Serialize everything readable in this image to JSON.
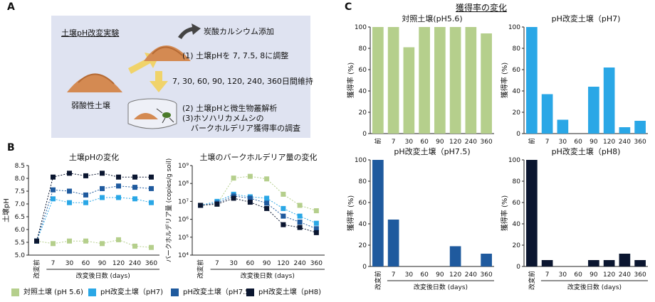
{
  "panel_labels": {
    "a": "A",
    "b": "B",
    "c": "C"
  },
  "panel_a": {
    "title": "土壌pH改変実験",
    "soil_label": "弱酸性土壌",
    "calcium_label": "炭酸カルシウム添加",
    "step1": "(1) 土壌pHを 7, 7.5, 8に調整",
    "days_text": "7, 30, 60, 90, 120, 240, 360日間維持",
    "step2": "(2) 土壌pHと微生物叢解析",
    "step3a": "(3)ホソハリカメムシの",
    "step3b": "バークホルデリア獲得率の調査"
  },
  "legend": [
    {
      "label": "対照土壌 (pH 5.6)",
      "color": "#b5cf8c"
    },
    {
      "label": "pH改変土壌（pH7)",
      "color": "#2aa7e6"
    },
    {
      "label": "pH改変土壌（pH7.5)",
      "color": "#1f5a9e"
    },
    {
      "label": "pH改変土壌（pH8)",
      "color": "#0b1630"
    }
  ],
  "panel_c_title": "獲得率の変化",
  "chart_data": [
    {
      "type": "line",
      "title": "土壌pHの変化",
      "ylabel": "土壌pH",
      "xlabel": "改変後日数 (days)",
      "categories": [
        "改変前",
        "7",
        "30",
        "60",
        "90",
        "120",
        "240",
        "360"
      ],
      "ylim": [
        5.0,
        8.5
      ],
      "yticks": [
        "5.0",
        "5.5",
        "6.0",
        "6.5",
        "7.0",
        "7.5",
        "8.0",
        "8.5"
      ],
      "series": [
        {
          "name": "対照土壌 (pH 5.6)",
          "color": "#b5cf8c",
          "values": [
            5.55,
            5.45,
            5.55,
            5.55,
            5.45,
            5.6,
            5.35,
            5.3
          ]
        },
        {
          "name": "pH改変土壌（pH7)",
          "color": "#2aa7e6",
          "values": [
            5.55,
            7.2,
            7.05,
            7.05,
            7.25,
            7.25,
            7.2,
            7.05
          ]
        },
        {
          "name": "pH改変土壌（pH7.5)",
          "color": "#1f5a9e",
          "values": [
            5.55,
            7.55,
            7.5,
            7.35,
            7.6,
            7.7,
            7.65,
            7.6
          ]
        },
        {
          "name": "pH改変土壌（pH8)",
          "color": "#0b1630",
          "values": [
            5.55,
            8.05,
            8.2,
            8.1,
            8.2,
            8.05,
            8.05,
            8.05
          ]
        }
      ]
    },
    {
      "type": "line",
      "title": "土壌のバークホルデリア量の変化",
      "ylabel": "バークホルデリア量 (copies/g soil)",
      "xlabel": "改変後日数 (days)",
      "categories": [
        "改変前",
        "7",
        "30",
        "60",
        "90",
        "120",
        "240",
        "360"
      ],
      "yscale": "log",
      "ylim": [
        10000,
        1000000000
      ],
      "yticks": [
        "10⁴",
        "10⁵",
        "10⁶",
        "10⁷",
        "10⁸",
        "10⁹"
      ],
      "series": [
        {
          "name": "対照土壌 (pH 5.6)",
          "color": "#b5cf8c",
          "values": [
            6000000,
            7000000,
            200000000,
            250000000,
            180000000,
            25000000,
            6000000,
            3000000
          ]
        },
        {
          "name": "pH改変土壌（pH7)",
          "color": "#2aa7e6",
          "values": [
            6000000,
            10000000,
            25000000,
            18000000,
            15000000,
            4000000,
            1500000,
            600000
          ]
        },
        {
          "name": "pH改変土壌（pH7.5)",
          "color": "#1f5a9e",
          "values": [
            6000000,
            8000000,
            20000000,
            15000000,
            8000000,
            1500000,
            700000,
            300000
          ]
        },
        {
          "name": "pH改変土壌（pH8)",
          "color": "#0b1630",
          "values": [
            6000000,
            7000000,
            15000000,
            9000000,
            4000000,
            500000,
            350000,
            180000
          ]
        }
      ]
    },
    {
      "type": "bar",
      "title": "対照土壌(pH5.6)",
      "ylabel": "獲得率 (%)",
      "categories": [
        "改変前",
        "7",
        "30",
        "60",
        "90",
        "120",
        "240",
        "360"
      ],
      "ylim": [
        0,
        100
      ],
      "yticks": [
        "0",
        "20",
        "40",
        "60",
        "80",
        "100"
      ],
      "color": "#b5cf8c",
      "values": [
        100,
        100,
        81,
        100,
        100,
        100,
        100,
        94
      ]
    },
    {
      "type": "bar",
      "title": "pH改変土壌（pH7)",
      "ylabel": "獲得率 (%)",
      "categories": [
        "改変前",
        "7",
        "30",
        "60",
        "90",
        "120",
        "240",
        "360"
      ],
      "ylim": [
        0,
        100
      ],
      "yticks": [
        "0",
        "20",
        "40",
        "60",
        "80",
        "100"
      ],
      "color": "#2aa7e6",
      "values": [
        100,
        37,
        13,
        0,
        44,
        62,
        6,
        12
      ]
    },
    {
      "type": "bar",
      "title": "pH改変土壌（pH7.5)",
      "ylabel": "獲得率 (%)",
      "xlabel": "改変後日数 (days)",
      "categories": [
        "改変前",
        "7",
        "30",
        "60",
        "90",
        "120",
        "240",
        "360"
      ],
      "ylim": [
        0,
        100
      ],
      "yticks": [
        "0",
        "20",
        "40",
        "60",
        "80",
        "100"
      ],
      "color": "#1f5a9e",
      "values": [
        100,
        44,
        0,
        0,
        0,
        19,
        0,
        12
      ]
    },
    {
      "type": "bar",
      "title": "pH改変土壌（pH8)",
      "ylabel": "獲得率 (%)",
      "xlabel": "改変後日数 (days)",
      "categories": [
        "改変前",
        "7",
        "30",
        "60",
        "90",
        "120",
        "240",
        "360"
      ],
      "ylim": [
        0,
        100
      ],
      "yticks": [
        "0",
        "20",
        "40",
        "60",
        "80",
        "100"
      ],
      "color": "#0b1630",
      "values": [
        100,
        6,
        0,
        0,
        6,
        6,
        12,
        6
      ]
    }
  ]
}
